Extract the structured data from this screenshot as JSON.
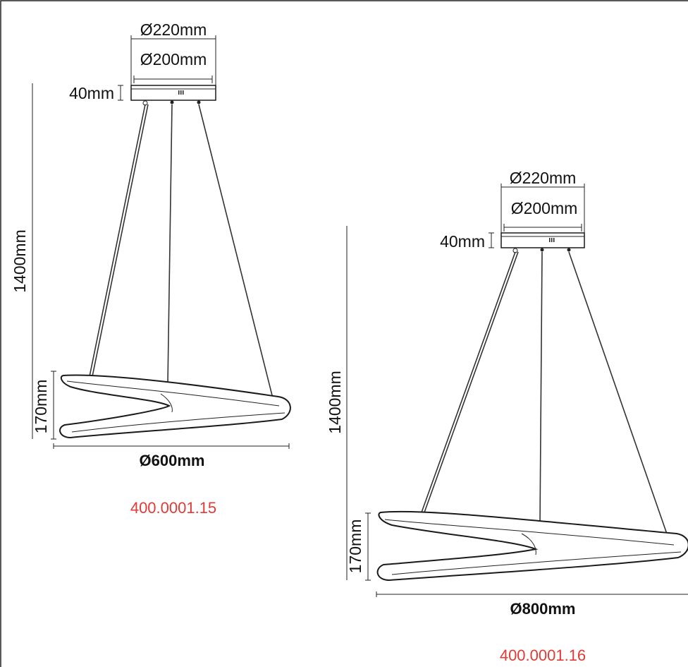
{
  "colors": {
    "line": "#1a1a1a",
    "code": "#e53935"
  },
  "lamps": [
    {
      "canopy_outer": "Ø220mm",
      "canopy_inner": "Ø200mm",
      "canopy_height": "40mm",
      "total_height": "1400mm",
      "ring_height": "170mm",
      "ring_diameter": "Ø600mm",
      "product_code": "400.0001.15"
    },
    {
      "canopy_outer": "Ø220mm",
      "canopy_inner": "Ø200mm",
      "canopy_height": "40mm",
      "total_height": "1400mm",
      "ring_height": "170mm",
      "ring_diameter": "Ø800mm",
      "product_code": "400.0001.16"
    }
  ]
}
